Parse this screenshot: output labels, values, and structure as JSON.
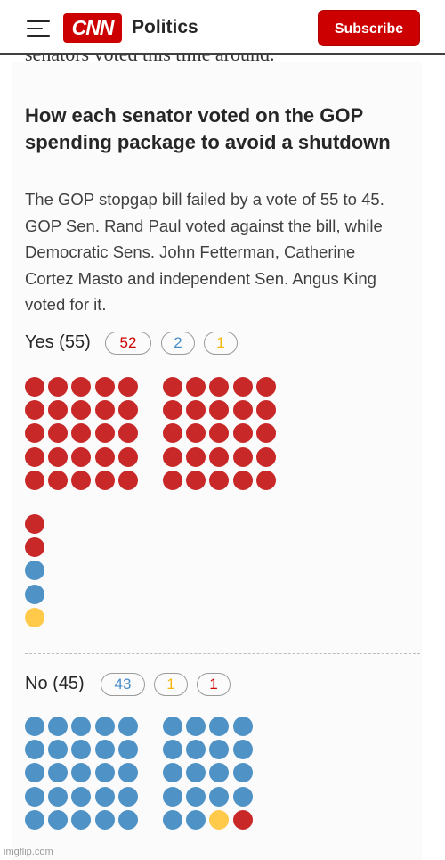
{
  "header": {
    "logo_text": "CNN",
    "section": "Politics",
    "subscribe_label": "Subscribe"
  },
  "prev_text": "senators voted this time around.",
  "article": {
    "headline": "How each senator voted on the GOP spending package to avoid a shutdown",
    "dek": "The GOP stopgap bill failed by a vote of 55 to 45. GOP Sen. Rand Paul voted against the bill, while Democratic Sens. John Fetterman, Catherine Cortez Masto and independent Sen. Angus King voted for it."
  },
  "votes": {
    "yes": {
      "label": "Yes (55)",
      "republicans": 52,
      "democrats": 2,
      "independents": 1,
      "pills": [
        "52",
        "2",
        "1"
      ]
    },
    "no": {
      "label": "No (45)",
      "democrats": 43,
      "independents": 1,
      "republicans": 1,
      "pills": [
        "43",
        "1",
        "1"
      ]
    }
  },
  "colors": {
    "republican": "#c82828",
    "democrat": "#4f92c6",
    "independent": "#ffc94a",
    "brand": "#cc0000"
  },
  "watermark": "imgflip.com"
}
